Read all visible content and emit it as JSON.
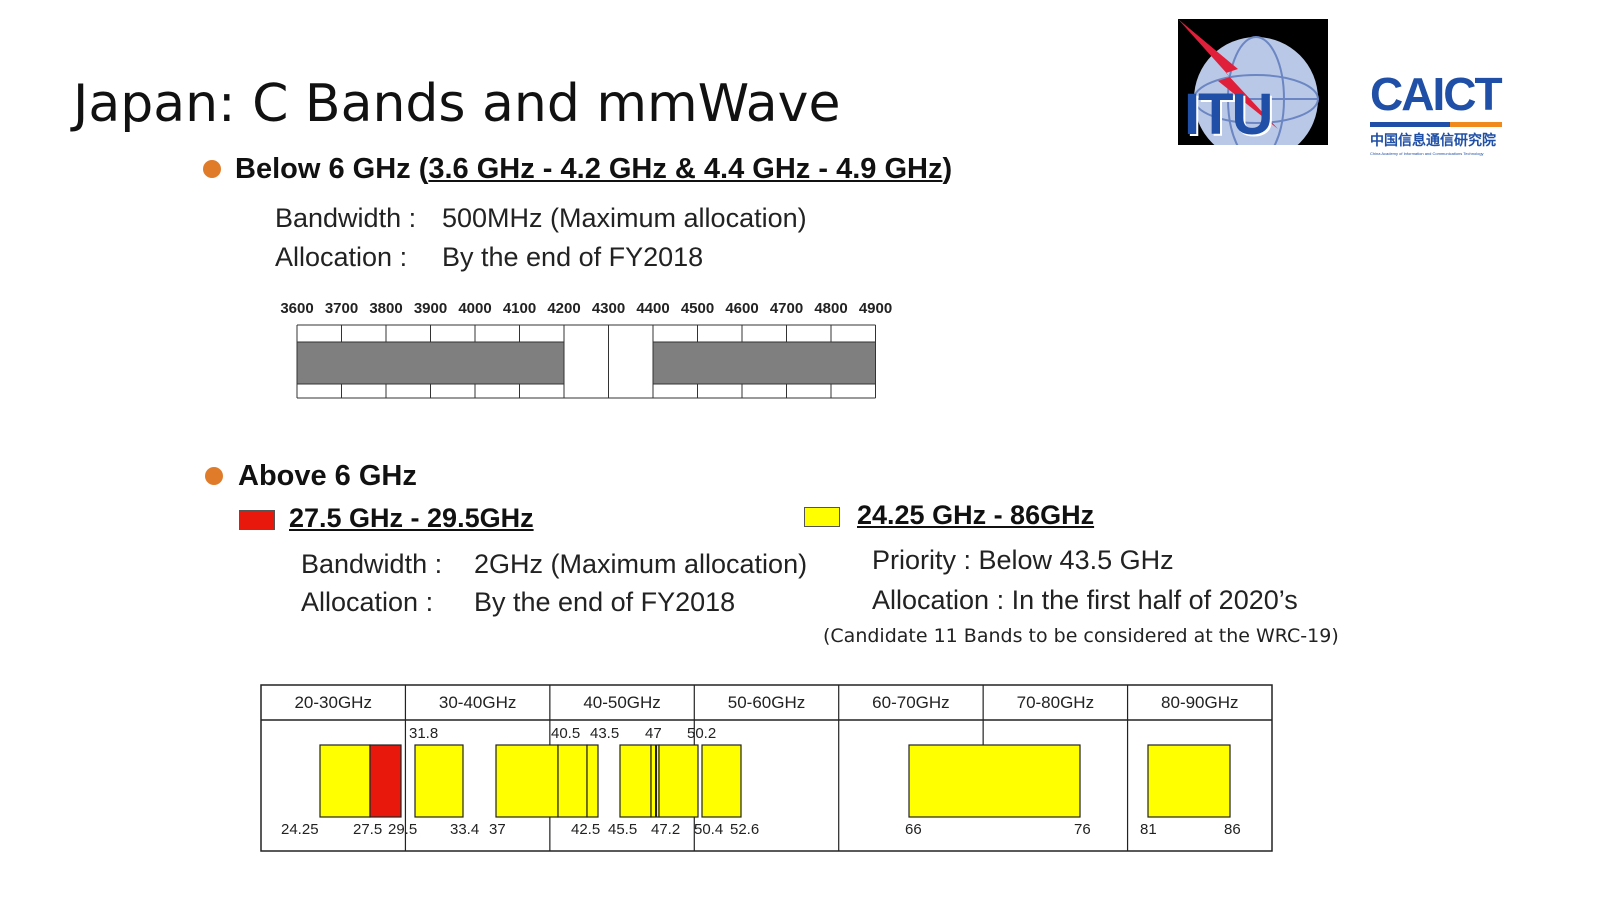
{
  "title": "Japan: C Bands and mmWave",
  "below": {
    "heading_prefix": "Below 6 GHz (",
    "heading_range": "3.6 GHz - 4.2 GHz & 4.4 GHz - 4.9 GHz",
    "heading_suffix": ")",
    "bandwidth_label": "Bandwidth :",
    "bandwidth_value": "500MHz (Maximum allocation)",
    "allocation_label": "Allocation :",
    "allocation_value": "By the end of FY2018",
    "scale_ticks": [
      "3600",
      "3700",
      "3800",
      "3900",
      "4000",
      "4100",
      "4200",
      "4300",
      "4400",
      "4500",
      "4600",
      "4700",
      "4800",
      "4900"
    ],
    "bands_mhz": [
      [
        3600,
        4200
      ],
      [
        4400,
        4900
      ]
    ],
    "band_color": "#7f7f7f"
  },
  "above": {
    "heading": "Above 6 GHz",
    "red_range": "27.5 GHz - 29.5GHz",
    "red_color": "#e8180c",
    "red_bandwidth_label": "Bandwidth :",
    "red_bandwidth_value": "2GHz (Maximum allocation)",
    "red_allocation_label": "Allocation :",
    "red_allocation_value": "By the end of FY2018",
    "yellow_range": "24.25 GHz - 86GHz",
    "yellow_color": "#ffff00",
    "priority": "Priority : Below 43.5 GHz",
    "yellow_allocation": "Allocation : In the first half of 2020’s",
    "note": "(Candidate 11 Bands to be considered at the WRC-19)"
  },
  "mm_table": {
    "headers": [
      "20-30GHz",
      "30-40GHz",
      "40-50GHz",
      "50-60GHz",
      "60-70GHz",
      "70-80GHz",
      "80-90GHz"
    ],
    "top_labels": [
      "31.8",
      "40.5",
      "43.5",
      "47",
      "50.2"
    ],
    "bottom_labels": [
      "24.25",
      "27.5",
      "29.5",
      "33.4",
      "37",
      "42.5",
      "45.5",
      "47.2",
      "50.4",
      "52.6",
      "66",
      "76",
      "81",
      "86"
    ]
  },
  "logos": {
    "itu_text": "ITU",
    "caict_text": "CAICT",
    "caict_cn": "中国信息通信研究院",
    "caict_en": "China Academy of Information and Communications Technology"
  }
}
